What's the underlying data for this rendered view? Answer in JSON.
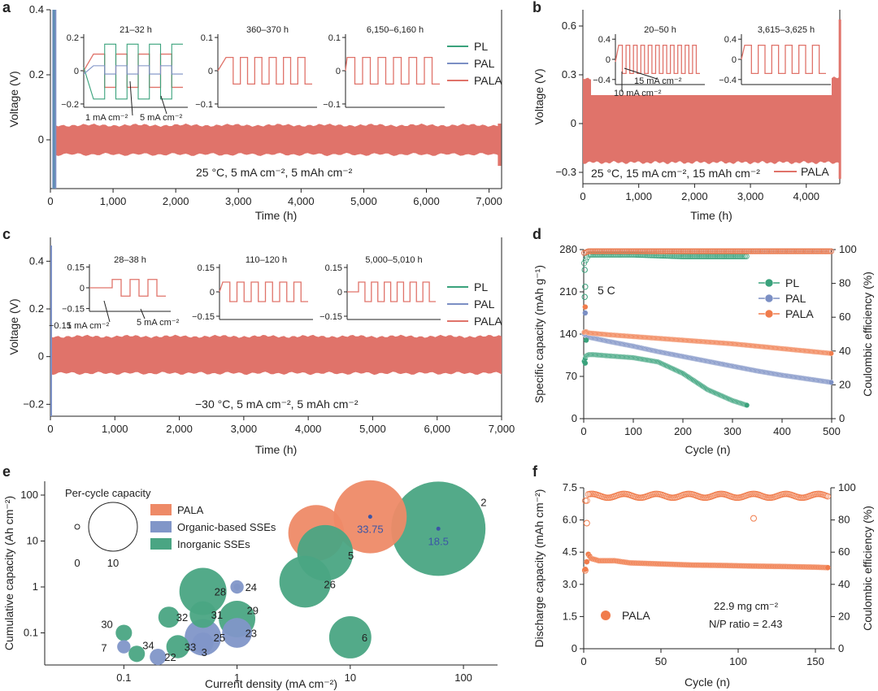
{
  "colors": {
    "PL": "#3aa27c",
    "PAL": "#7b8fc4",
    "PALA": "#e0736a",
    "PALA_bubble": "#ee8a67",
    "PALA_dot": "#f07c4c",
    "Organic": "#8196c8",
    "Inorganic": "#4aa583",
    "axis": "#222222",
    "text_blue": "#3b55a6"
  },
  "chart_data": [
    {
      "panel": "a",
      "type": "line",
      "xlabel": "Time (h)",
      "ylabel": "Voltage (V)",
      "xlim": [
        0,
        7200
      ],
      "ylim": [
        -0.15,
        0.4
      ],
      "xticks": [
        "0",
        "1,000",
        "2,000",
        "3,000",
        "4,000",
        "5,000",
        "6,000",
        "7,000"
      ],
      "xtick_values": [
        0,
        1000,
        2000,
        3000,
        4000,
        5000,
        6000,
        7000
      ],
      "yticks": [
        "0",
        "0.2",
        "0.4"
      ],
      "ytick_values": [
        0,
        0.2,
        0.4
      ],
      "annotation": "25 °C,    5 mA cm⁻², 5 mAh cm⁻²",
      "series": [
        {
          "name": "PL",
          "color_key": "PL",
          "end_time_h": 80
        },
        {
          "name": "PAL",
          "color_key": "PAL",
          "end_time_h": 80
        },
        {
          "name": "PALA",
          "color_key": "PALA",
          "band_x": [
            0,
            7160
          ],
          "band_y": [
            [
              -0.04,
              0.04
            ],
            [
              -0.04,
              0.045
            ],
            [
              -0.045,
              0.045
            ]
          ],
          "end_spike": [
            -0.08,
            0.05
          ]
        }
      ],
      "legend": [
        "PL",
        "PAL",
        "PALA"
      ],
      "insets": [
        {
          "title": "21–32 h",
          "yticks": [
            "0.2",
            "0",
            "−0.2"
          ],
          "ytick_values": [
            0.2,
            0,
            -0.2
          ],
          "labels": [
            "1 mA cm⁻²",
            "5 mA cm⁻²"
          ]
        },
        {
          "title": "360–370 h",
          "yticks": [
            "0.1",
            "0",
            "−0.1"
          ],
          "ytick_values": [
            0.1,
            0,
            -0.1
          ]
        },
        {
          "title": "6,150–6,160 h",
          "yticks": [
            "0.1",
            "0",
            "−0.1"
          ],
          "ytick_values": [
            0.1,
            0,
            -0.1
          ]
        }
      ]
    },
    {
      "panel": "b",
      "type": "line",
      "xlabel": "Time (h)",
      "ylabel": "Voltage (V)",
      "xlim": [
        0,
        4600
      ],
      "ylim": [
        -0.37,
        0.7
      ],
      "xticks": [
        "0",
        "1,000",
        "2,000",
        "3,000",
        "4,000"
      ],
      "xtick_values": [
        0,
        1000,
        2000,
        3000,
        4000
      ],
      "yticks": [
        "−0.3",
        "0",
        "0.3",
        "0.6"
      ],
      "ytick_values": [
        -0.3,
        0,
        0.3,
        0.6
      ],
      "annotation": "25 °C, 15 mA cm⁻², 15 mAh cm⁻²",
      "series": [
        {
          "name": "PALA",
          "color_key": "PALA",
          "band_x": [
            0,
            4590
          ],
          "band_y": [
            -0.24,
            0.28
          ],
          "end_spike": [
            -0.34,
            0.64
          ]
        }
      ],
      "legend": [
        "PALA"
      ],
      "insets": [
        {
          "title": "20–50 h",
          "yticks": [
            "0.4",
            "0",
            "−0.4"
          ],
          "ytick_values": [
            0.4,
            0,
            -0.4
          ],
          "labels": [
            "15 mA cm⁻²",
            "10 mA cm⁻²"
          ]
        },
        {
          "title": "3,615–3,625 h",
          "yticks": [
            "0.4",
            "0",
            "−0.4"
          ],
          "ytick_values": [
            0.4,
            0,
            -0.4
          ]
        }
      ]
    },
    {
      "panel": "c",
      "type": "line",
      "xlabel": "Time (h)",
      "ylabel": "Voltage (V)",
      "xlim": [
        0,
        7000
      ],
      "ylim": [
        -0.25,
        0.5
      ],
      "xticks": [
        "0",
        "1,000",
        "2,000",
        "3,000",
        "4,000",
        "5,000",
        "6,000",
        "7,000"
      ],
      "xtick_values": [
        0,
        1000,
        2000,
        3000,
        4000,
        5000,
        6000,
        7000
      ],
      "yticks": [
        "−0.2",
        "0",
        "0.2",
        "0.4"
      ],
      "ytick_values": [
        -0.2,
        0,
        0.2,
        0.4
      ],
      "annotation": "−30 °C,    5 mA cm⁻², 5 mAh cm⁻²",
      "series": [
        {
          "name": "PL",
          "color_key": "PL"
        },
        {
          "name": "PAL",
          "color_key": "PAL"
        },
        {
          "name": "PALA",
          "color_key": "PALA",
          "band_x": [
            0,
            7000
          ],
          "band_y": [
            -0.07,
            0.085
          ]
        }
      ],
      "legend": [
        "PL",
        "PAL",
        "PALA"
      ],
      "insets": [
        {
          "title": "28–38 h",
          "yticks": [
            "0.15",
            "0",
            "−0.15"
          ],
          "ytick_values": [
            0.15,
            0,
            -0.15
          ],
          "labels": [
            "1 mA cm⁻²",
            "5 mA cm⁻²"
          ]
        },
        {
          "title": "110–120 h",
          "yticks": [
            "0.15",
            "0",
            "−0.15"
          ],
          "ytick_values": [
            0.15,
            0,
            -0.15
          ]
        },
        {
          "title": "5,000–5,010 h",
          "yticks": [
            "0.15",
            "0",
            "−0.15"
          ],
          "ytick_values": [
            0.15,
            0,
            -0.15
          ]
        }
      ]
    },
    {
      "panel": "d",
      "type": "scatter",
      "xlabel": "Cycle (n)",
      "ylabel_left": "Specific capacity (mAh g⁻¹)",
      "ylabel_right": "Coulombic efficiency (%)",
      "xlim": [
        0,
        500
      ],
      "ylim_left": [
        0,
        280
      ],
      "ylim_right": [
        0,
        100
      ],
      "xticks": [
        "0",
        "100",
        "200",
        "300",
        "400",
        "500"
      ],
      "xtick_values": [
        0,
        100,
        200,
        300,
        400,
        500
      ],
      "yticks_left": [
        "0",
        "70",
        "140",
        "210",
        "280"
      ],
      "ytick_values_left": [
        0,
        70,
        140,
        210,
        280
      ],
      "yticks_right": [
        "0",
        "20",
        "40",
        "60",
        "80",
        "100"
      ],
      "ytick_values_right": [
        0,
        20,
        40,
        60,
        80,
        100
      ],
      "annotation": "5 C",
      "legend": [
        "PL",
        "PAL",
        "PALA"
      ],
      "series": [
        {
          "name": "PL",
          "color_key": "PL",
          "capacity_x": [
            1,
            5,
            10,
            20,
            50,
            100,
            150,
            200,
            250,
            300,
            330
          ],
          "capacity_y": [
            95,
            104,
            106,
            106,
            104,
            101,
            94,
            75,
            48,
            30,
            22
          ],
          "ce_x": [
            1,
            10,
            50,
            100,
            200,
            330
          ],
          "ce_y": [
            92,
            97,
            97,
            97,
            96,
            96
          ]
        },
        {
          "name": "PAL",
          "color_key": "PAL",
          "capacity_x": [
            1,
            5,
            10,
            50,
            100,
            150,
            200,
            250,
            300,
            350,
            400,
            450,
            500
          ],
          "capacity_y": [
            140,
            138,
            135,
            128,
            120,
            111,
            103,
            95,
            87,
            79,
            72,
            66,
            60
          ],
          "ce_x": [
            1,
            10,
            100,
            200,
            300,
            400,
            500
          ],
          "ce_y": [
            98,
            99,
            99,
            99,
            99,
            99,
            99
          ]
        },
        {
          "name": "PALA",
          "color_key": "PALA",
          "capacity_x": [
            1,
            5,
            10,
            50,
            100,
            150,
            200,
            250,
            300,
            350,
            400,
            450,
            500
          ],
          "capacity_y": [
            143,
            144,
            142,
            139,
            136,
            133,
            130,
            127,
            124,
            120,
            116,
            112,
            108
          ],
          "ce_x": [
            1,
            10,
            100,
            200,
            300,
            400,
            500
          ],
          "ce_y": [
            98,
            99,
            99,
            99,
            99,
            99,
            99
          ]
        }
      ]
    },
    {
      "panel": "e",
      "type": "scatter",
      "xlabel": "Current density (mA cm⁻²)",
      "ylabel": "Cumulative capacity (Ah cm⁻²)",
      "x_scale": "log",
      "y_scale": "log",
      "xlim": [
        0.02,
        200
      ],
      "ylim": [
        0.02,
        200
      ],
      "xticks": [
        "0.1",
        "1",
        "10",
        "100"
      ],
      "xtick_values": [
        0.1,
        1,
        10,
        100
      ],
      "yticks": [
        "0.1",
        "1",
        "10",
        "100"
      ],
      "ytick_values": [
        0.1,
        1,
        10,
        100
      ],
      "size_legend_title": "Per-cycle capacity",
      "size_legend_labels": [
        "0",
        "10"
      ],
      "legend": [
        "PALA",
        "Organic-based SSEs",
        "Inorganic SSEs"
      ],
      "points": [
        {
          "label": "",
          "x": 5,
          "y": 15,
          "size": 3.5,
          "group": "PALA"
        },
        {
          "label": "33.75",
          "x": 15,
          "y": 33.75,
          "size": 6,
          "group": "PALA"
        },
        {
          "label": "2",
          "x": 60,
          "y": 18.5,
          "size": 10,
          "group": "Inorganic"
        },
        {
          "label": "18.5",
          "x": 60,
          "y": 18.5,
          "size": 0,
          "group": "value"
        },
        {
          "label": "5",
          "x": 6,
          "y": 5.5,
          "size": 3.5,
          "group": "Inorganic"
        },
        {
          "label": "26",
          "x": 4,
          "y": 1.3,
          "size": 3.0,
          "group": "Inorganic"
        },
        {
          "label": "24",
          "x": 1,
          "y": 1.0,
          "size": 0.2,
          "group": "Organic"
        },
        {
          "label": "28",
          "x": 0.5,
          "y": 0.8,
          "size": 2.5,
          "group": "Inorganic"
        },
        {
          "label": "29",
          "x": 1.0,
          "y": 0.2,
          "size": 1.5,
          "group": "Inorganic"
        },
        {
          "label": "31",
          "x": 0.5,
          "y": 0.25,
          "size": 0.8,
          "group": "Inorganic"
        },
        {
          "label": "32",
          "x": 0.25,
          "y": 0.22,
          "size": 0.5,
          "group": "Inorganic"
        },
        {
          "label": "25",
          "x": 0.5,
          "y": 0.08,
          "size": 1.5,
          "group": "Organic"
        },
        {
          "label": "23",
          "x": 1.0,
          "y": 0.1,
          "size": 1.0,
          "group": "Organic"
        },
        {
          "label": "6",
          "x": 10,
          "y": 0.08,
          "size": 2.0,
          "group": "Inorganic"
        },
        {
          "label": "30",
          "x": 0.1,
          "y": 0.1,
          "size": 0.3,
          "group": "Inorganic"
        },
        {
          "label": "7",
          "x": 0.1,
          "y": 0.05,
          "size": 0.2,
          "group": "Organic"
        },
        {
          "label": "34",
          "x": 0.13,
          "y": 0.035,
          "size": 0.3,
          "group": "Inorganic"
        },
        {
          "label": "22",
          "x": 0.2,
          "y": 0.03,
          "size": 0.3,
          "group": "Organic"
        },
        {
          "label": "33",
          "x": 0.3,
          "y": 0.05,
          "size": 0.6,
          "group": "Inorganic"
        },
        {
          "label": "3",
          "x": 0.5,
          "y": 0.06,
          "size": 0.5,
          "group": "Organic"
        }
      ]
    },
    {
      "panel": "f",
      "type": "scatter",
      "xlabel": "Cycle (n)",
      "ylabel_left": "Discharge capacity (mAh cm⁻²)",
      "ylabel_right": "Coulombic efficiency (%)",
      "xlim": [
        0,
        160
      ],
      "ylim_left": [
        0,
        7.5
      ],
      "ylim_right": [
        0,
        100
      ],
      "xticks": [
        "0",
        "50",
        "100",
        "150"
      ],
      "xtick_values": [
        0,
        50,
        100,
        150
      ],
      "yticks_left": [
        "0",
        "1.5",
        "3.0",
        "4.5",
        "6.0",
        "7.5"
      ],
      "ytick_values_left": [
        0,
        1.5,
        3.0,
        4.5,
        6.0,
        7.5
      ],
      "yticks_right": [
        "0",
        "20",
        "40",
        "60",
        "80",
        "100"
      ],
      "ytick_values_right": [
        0,
        20,
        40,
        60,
        80,
        100
      ],
      "legend": [
        "PALA"
      ],
      "annotation_lines": [
        "22.9 mg cm⁻²",
        "N/P ratio = 2.43"
      ],
      "series": [
        {
          "name": "PALA",
          "color_key": "PALA_dot",
          "capacity_x": [
            1,
            3,
            5,
            10,
            20,
            30,
            50,
            70,
            90,
            110,
            130,
            150,
            158
          ],
          "capacity_y": [
            3.7,
            4.4,
            4.2,
            4.1,
            4.1,
            4.0,
            3.95,
            3.9,
            3.88,
            3.85,
            3.83,
            3.8,
            3.78
          ],
          "ce_x": [
            1,
            2,
            5,
            10,
            20,
            40,
            60,
            80,
            100,
            110,
            120,
            140,
            158
          ],
          "ce_y": [
            92,
            78,
            92,
            94,
            95,
            96,
            96,
            96,
            96,
            81,
            95,
            95,
            94
          ]
        }
      ]
    }
  ]
}
